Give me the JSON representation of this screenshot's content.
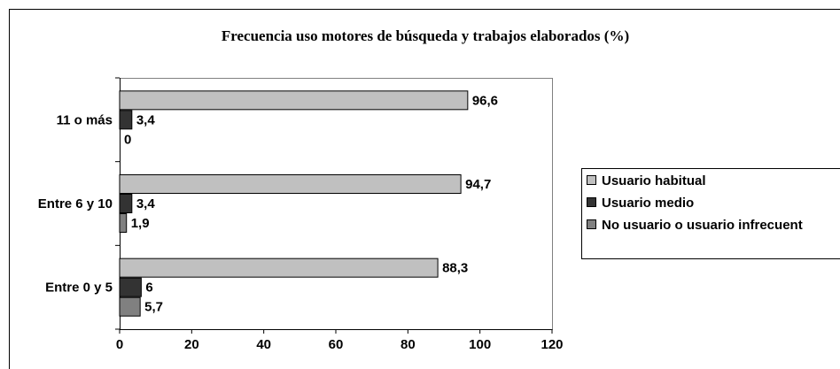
{
  "chart_data": {
    "type": "bar",
    "orientation": "horizontal",
    "title": "Frecuencia uso motores de búsqueda y trabajos elaborados (%)",
    "categories": [
      "11 o más",
      "Entre 6 y 10",
      "Entre 0 y 5"
    ],
    "series": [
      {
        "name": "Usuario habitual",
        "color": "#c0c0c0",
        "values": [
          96.6,
          94.7,
          88.3
        ],
        "value_labels": [
          "96,6",
          "94,7",
          "88,3"
        ]
      },
      {
        "name": "Usuario medio",
        "color": "#333333",
        "values": [
          3.4,
          3.4,
          6
        ],
        "value_labels": [
          "3,4",
          "3,4",
          "6"
        ]
      },
      {
        "name": "No usuario o usuario infrecuent",
        "color": "#808080",
        "values": [
          0,
          1.9,
          5.7
        ],
        "value_labels": [
          "0",
          "1,9",
          "5,7"
        ]
      }
    ],
    "xlim": [
      0,
      120
    ],
    "xticks": [
      0,
      20,
      40,
      60,
      80,
      100,
      120
    ],
    "grid": false,
    "legend": "right"
  }
}
